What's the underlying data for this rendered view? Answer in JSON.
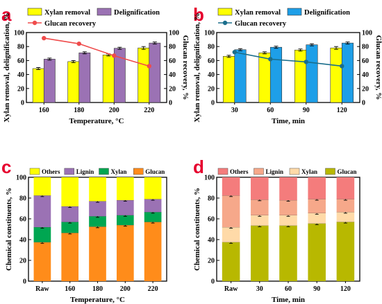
{
  "chart_data": [
    {
      "letter": "a",
      "type": "bar+line",
      "categories": [
        "160",
        "180",
        "200",
        "220"
      ],
      "xlabel": "Temperature, °C",
      "ylabel": "Xylan removal, delignification, %",
      "y2label": "Glucan recovery, %",
      "ylim": [
        0,
        100
      ],
      "y2lim": [
        0,
        100
      ],
      "yticks": [
        "0",
        "20",
        "40",
        "60",
        "80",
        "100"
      ],
      "y2ticks": [
        "0",
        "20",
        "40",
        "60",
        "80",
        "100"
      ],
      "series": [
        {
          "name": "Xylan removal",
          "kind": "bar",
          "color": "#ffff00",
          "values": [
            48.5,
            58.5,
            68,
            78
          ],
          "err": [
            1.5,
            1.5,
            1.5,
            2
          ]
        },
        {
          "name": "Delignification",
          "kind": "bar",
          "color": "#9b72b4",
          "values": [
            62,
            71,
            77.5,
            85
          ],
          "err": [
            1.5,
            1.5,
            1.5,
            1.5
          ]
        },
        {
          "name": "Glucan recovery",
          "kind": "line",
          "color": "#ef4b4b",
          "values": [
            92,
            84,
            67,
            52
          ]
        }
      ],
      "legend": "top"
    },
    {
      "letter": "b",
      "type": "bar+line",
      "categories": [
        "30",
        "60",
        "90",
        "120"
      ],
      "xlabel": "Time, min",
      "ylabel": "Xylan removal, delignification, %",
      "y2label": "Glucan recovery, %",
      "ylim": [
        0,
        100
      ],
      "y2lim": [
        0,
        100
      ],
      "yticks": [
        "0",
        "20",
        "40",
        "60",
        "80",
        "100"
      ],
      "y2ticks": [
        "0",
        "20",
        "40",
        "60",
        "80",
        "100"
      ],
      "series": [
        {
          "name": "Xylan removal",
          "kind": "bar",
          "color": "#ffff00",
          "values": [
            66,
            71,
            75,
            78
          ],
          "err": [
            1.5,
            1.5,
            1.5,
            2
          ]
        },
        {
          "name": "Delignification",
          "kind": "bar",
          "color": "#1e9fe8",
          "values": [
            75.5,
            79,
            82.5,
            85
          ],
          "err": [
            1.5,
            1.5,
            1.5,
            1.5
          ]
        },
        {
          "name": "Glucan recovery",
          "kind": "line",
          "color": "#1b6e8c",
          "values": [
            72,
            62,
            58,
            52
          ]
        }
      ],
      "legend": "top"
    },
    {
      "letter": "c",
      "type": "stacked-bar",
      "categories": [
        "Raw",
        "160",
        "180",
        "200",
        "220"
      ],
      "xlabel": "Temperature, °C",
      "ylabel": "Chemical constituents, %",
      "ylim": [
        0,
        100
      ],
      "yticks": [
        "0",
        "20",
        "40",
        "60",
        "80",
        "100"
      ],
      "series": [
        {
          "name": "Glucan",
          "color": "#ff8c1a",
          "values": [
            37.5,
            46.5,
            52.5,
            54,
            57
          ]
        },
        {
          "name": "Xylan",
          "color": "#00a651",
          "values": [
            14.5,
            10.5,
            10,
            9.5,
            9.5
          ]
        },
        {
          "name": "Lignin",
          "color": "#9b72b4",
          "values": [
            30.5,
            15,
            14.5,
            14.5,
            12.5
          ]
        },
        {
          "name": "Others",
          "color": "#ffff00",
          "values": [
            17.5,
            28,
            23,
            22,
            21
          ]
        }
      ],
      "legend": "top"
    },
    {
      "letter": "d",
      "type": "stacked-bar",
      "categories": [
        "Raw",
        "30",
        "60",
        "90",
        "120"
      ],
      "xlabel": "Time, min",
      "ylabel": "Chemical constituents, %",
      "ylim": [
        0,
        100
      ],
      "yticks": [
        "0",
        "20",
        "40",
        "60",
        "80",
        "100"
      ],
      "series": [
        {
          "name": "Glucan",
          "color": "#b8b800",
          "values": [
            37.5,
            53.5,
            53.5,
            55.5,
            57
          ]
        },
        {
          "name": "Xylan",
          "color": "#ffdaa8",
          "values": [
            14.5,
            10,
            10,
            10,
            9.5
          ]
        },
        {
          "name": "Lignin",
          "color": "#f6a88a",
          "values": [
            30.5,
            15,
            14.5,
            13.5,
            12.5
          ]
        },
        {
          "name": "Others",
          "color": "#f47c7c",
          "values": [
            17.5,
            21.5,
            22,
            21,
            21
          ]
        }
      ],
      "legend": "top"
    }
  ]
}
